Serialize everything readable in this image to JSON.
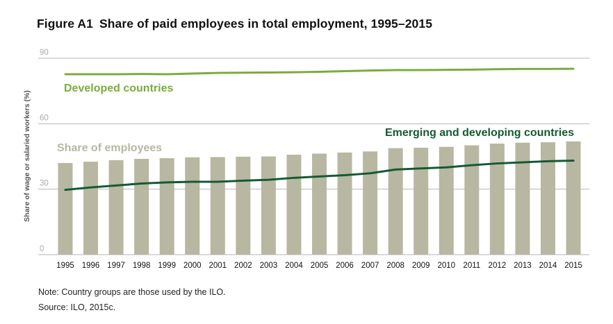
{
  "figure": {
    "label": "Figure A1",
    "title": "Share of paid employees in total employment, 1995–2015",
    "note": "Note: Country groups are those used by the ILO.",
    "source": "Source: ILO, 2015c."
  },
  "colors": {
    "bars": "#b8b7a2",
    "developed": "#7aac3c",
    "emerging": "#145a32",
    "grid": "#b5b5b5",
    "tick": "#aaaaaa"
  },
  "chart_data": {
    "type": "bar",
    "title": "Share of paid employees in total employment, 1995–2015",
    "xlabel": "",
    "ylabel": "Share of wage or salaried workers (%)",
    "ylim": [
      0,
      90
    ],
    "yticks": [
      0,
      30,
      60,
      90
    ],
    "grid": true,
    "categories": [
      "1995",
      "1996",
      "1997",
      "1998",
      "1999",
      "2000",
      "2001",
      "2002",
      "2003",
      "2004",
      "2005",
      "2006",
      "2007",
      "2008",
      "2009",
      "2010",
      "2011",
      "2012",
      "2013",
      "2014",
      "2015"
    ],
    "series": [
      {
        "name": "Share of employees",
        "kind": "bar",
        "values": [
          42.0,
          42.6,
          43.3,
          43.9,
          44.2,
          44.6,
          44.7,
          44.9,
          45.0,
          45.8,
          46.3,
          46.8,
          47.3,
          48.8,
          49.0,
          49.4,
          50.1,
          50.9,
          51.3,
          51.5,
          51.9
        ]
      },
      {
        "name": "Developed countries",
        "kind": "line",
        "values": [
          82.7,
          82.7,
          82.7,
          82.8,
          82.7,
          83.0,
          83.3,
          83.4,
          83.5,
          83.6,
          83.8,
          84.1,
          84.4,
          84.6,
          84.6,
          84.7,
          84.8,
          85.0,
          85.1,
          85.1,
          85.2
        ]
      },
      {
        "name": "Emerging and developing countries",
        "kind": "line",
        "values": [
          29.7,
          30.8,
          31.7,
          32.6,
          33.1,
          33.4,
          33.4,
          33.9,
          34.3,
          35.2,
          35.8,
          36.4,
          37.3,
          39.0,
          39.5,
          40.0,
          41.0,
          41.8,
          42.3,
          42.8,
          43.1
        ]
      }
    ]
  }
}
